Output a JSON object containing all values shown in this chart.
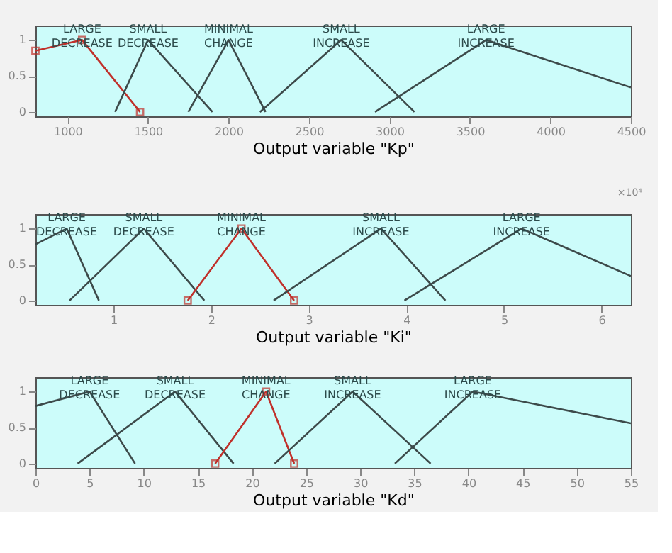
{
  "chart_data": [
    {
      "type": "line",
      "xlabel": "Output variable \"Kp\"",
      "xlim": [
        800,
        4500
      ],
      "xticks": [
        1000,
        1500,
        2000,
        2500,
        3000,
        3500,
        4000,
        4500
      ],
      "ylim": [
        -0.06,
        1.2
      ],
      "yticks": [
        0,
        0.5,
        1
      ],
      "legend": false,
      "grid": false,
      "series": [
        {
          "name": "LARGE DECREASE",
          "color": "#c0302a",
          "marker": "square",
          "x": [
            800,
            1090,
            1450
          ],
          "values": [
            0.85,
            1,
            0
          ]
        },
        {
          "name": "SMALL DECREASE",
          "color": "#3d4a4a",
          "x": [
            1295,
            1500,
            1900
          ],
          "values": [
            0,
            1,
            0
          ]
        },
        {
          "name": "MINIMAL CHANGE",
          "color": "#3d4a4a",
          "x": [
            1750,
            2000,
            2230
          ],
          "values": [
            0,
            1,
            0
          ]
        },
        {
          "name": "SMALL INCREASE",
          "color": "#3d4a4a",
          "x": [
            2195,
            2700,
            3155
          ],
          "values": [
            0,
            1,
            0
          ]
        },
        {
          "name": "LARGE INCREASE",
          "color": "#3d4a4a",
          "x": [
            2910,
            3600,
            4500
          ],
          "values": [
            0,
            1,
            0.34
          ]
        }
      ]
    },
    {
      "type": "line",
      "xlabel": "Output variable \"Ki\"",
      "xlim": [
        0.2,
        6.3
      ],
      "xticks": [
        1,
        2,
        3,
        4,
        5,
        6
      ],
      "ylim": [
        -0.06,
        1.2
      ],
      "yticks": [
        0,
        0.5,
        1
      ],
      "legend": false,
      "grid": false,
      "annotations": [
        "×10⁴"
      ],
      "series": [
        {
          "name": "LARGE DECREASE",
          "color": "#3d4a4a",
          "x": [
            0.2,
            0.52,
            0.85
          ],
          "values": [
            0.78,
            1,
            0
          ]
        },
        {
          "name": "SMALL DECREASE",
          "color": "#3d4a4a",
          "x": [
            0.55,
            1.31,
            1.93
          ],
          "values": [
            0,
            1,
            0
          ]
        },
        {
          "name": "MINIMAL CHANGE",
          "color": "#c0302a",
          "marker": "square",
          "x": [
            1.76,
            2.31,
            2.85
          ],
          "values": [
            0,
            1,
            0
          ]
        },
        {
          "name": "SMALL INCREASE",
          "color": "#3d4a4a",
          "x": [
            2.64,
            3.74,
            4.4
          ],
          "values": [
            0,
            1,
            0
          ]
        },
        {
          "name": "LARGE INCREASE",
          "color": "#3d4a4a",
          "x": [
            3.98,
            5.18,
            6.3
          ],
          "values": [
            0,
            1,
            0.34
          ]
        }
      ]
    },
    {
      "type": "line",
      "xlabel": "Output variable \"Kd\"",
      "xlim": [
        0,
        55
      ],
      "xticks": [
        0,
        5,
        10,
        15,
        20,
        25,
        30,
        35,
        40,
        45,
        50,
        55
      ],
      "ylim": [
        -0.06,
        1.2
      ],
      "yticks": [
        0,
        0.5,
        1
      ],
      "legend": false,
      "grid": false,
      "series": [
        {
          "name": "LARGE DECREASE",
          "color": "#3d4a4a",
          "x": [
            0,
            5,
            9.2
          ],
          "values": [
            0.8,
            1,
            0
          ]
        },
        {
          "name": "SMALL DECREASE",
          "color": "#3d4a4a",
          "x": [
            3.9,
            12.9,
            18.3
          ],
          "values": [
            0,
            1,
            0
          ]
        },
        {
          "name": "MINIMAL CHANGE",
          "color": "#c0302a",
          "marker": "square",
          "x": [
            16.6,
            21.3,
            23.9
          ],
          "values": [
            0,
            1,
            0
          ]
        },
        {
          "name": "SMALL INCREASE",
          "color": "#3d4a4a",
          "x": [
            22.1,
            29.3,
            36.5
          ],
          "values": [
            0,
            1,
            0
          ]
        },
        {
          "name": "LARGE INCREASE",
          "color": "#3d4a4a",
          "x": [
            33.2,
            40.4,
            55
          ],
          "values": [
            0,
            1,
            0.56
          ]
        }
      ]
    }
  ]
}
